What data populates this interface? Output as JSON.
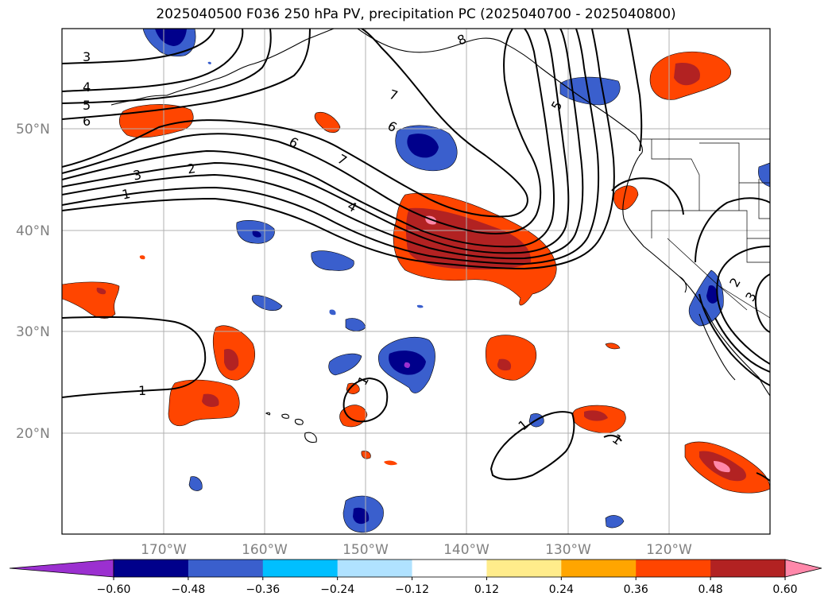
{
  "title": "2025040500 F036 250 hPa PV, precipitation PC (2025040700 - 2025040800)",
  "longitude_labels": [
    "170°W",
    "160°W",
    "150°W",
    "140°W",
    "130°W",
    "120°W"
  ],
  "latitude_labels": [
    "50°N",
    "40°N",
    "30°N",
    "20°N"
  ],
  "contour_labels": [
    "3",
    "4",
    "5",
    "6",
    "7",
    "8",
    "5",
    "6",
    "6",
    "7",
    "4",
    "3",
    "2",
    "1",
    "1",
    "1",
    "1",
    "1",
    "2",
    "3"
  ],
  "colorbar": {
    "ticks": [
      "−0.60",
      "−0.48",
      "−0.36",
      "−0.24",
      "−0.12",
      "0.12",
      "0.24",
      "0.36",
      "0.48",
      "0.60"
    ],
    "colors": [
      "#9b30d0",
      "#00008b",
      "#3a5fcd",
      "#00bfff",
      "#b0e2ff",
      "#ffffff",
      "#ffec8b",
      "#ffa500",
      "#ff4500",
      "#b22222",
      "#ff88aa"
    ]
  },
  "fill_colors": {
    "neg_dark": "#00008b",
    "neg_mid": "#3a5fcd",
    "neg_light": "#00bfff",
    "pos_light": "#ffec8b",
    "pos_mid": "#ff4500",
    "pos_dark": "#b22222",
    "pos_max": "#ff88aa"
  }
}
